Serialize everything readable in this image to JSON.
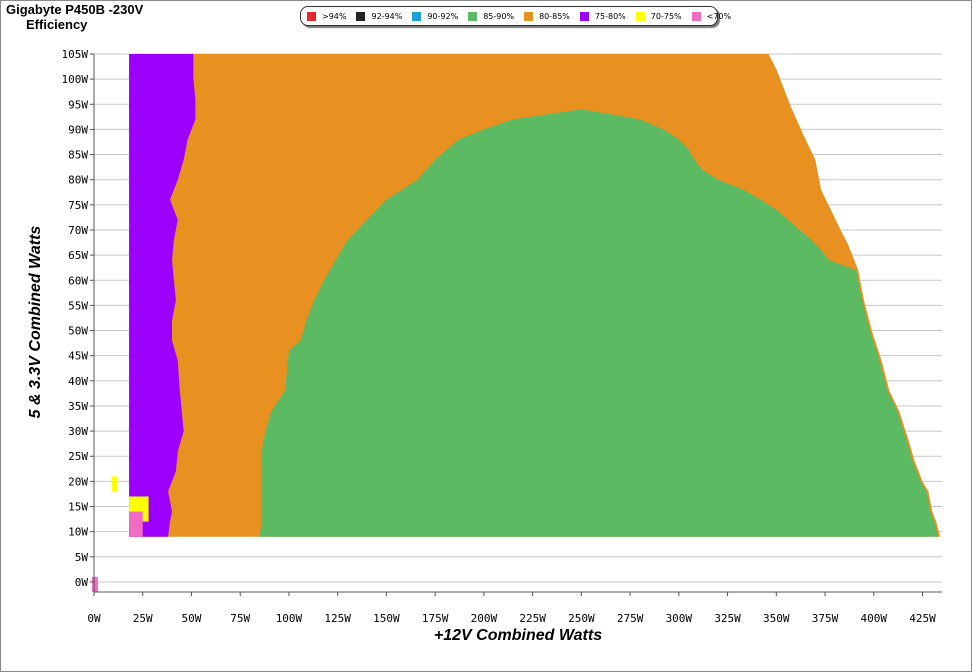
{
  "chart_data": {
    "type": "heatmap",
    "title": "Gigabyte P450B -230V",
    "subtitle": "Efficiency",
    "xlabel": "+12V Combined Watts",
    "ylabel": "5 & 3.3V Combined Watts",
    "xlim": [
      0,
      435
    ],
    "ylim": [
      -2,
      105
    ],
    "x_ticks": [
      0,
      25,
      50,
      75,
      100,
      125,
      150,
      175,
      200,
      225,
      250,
      275,
      300,
      325,
      350,
      375,
      400,
      425
    ],
    "x_tick_labels": [
      "0W",
      "25W",
      "50W",
      "75W",
      "100W",
      "125W",
      "150W",
      "175W",
      "200W",
      "225W",
      "250W",
      "275W",
      "300W",
      "325W",
      "350W",
      "375W",
      "400W",
      "425W"
    ],
    "y_ticks": [
      0,
      5,
      10,
      15,
      20,
      25,
      30,
      35,
      40,
      45,
      50,
      55,
      60,
      65,
      70,
      75,
      80,
      85,
      90,
      95,
      100,
      105
    ],
    "y_tick_labels": [
      "0W",
      "5W",
      "10W",
      "15W",
      "20W",
      "25W",
      "30W",
      "35W",
      "40W",
      "45W",
      "50W",
      "55W",
      "60W",
      "65W",
      "70W",
      "75W",
      "80W",
      "85W",
      "90W",
      "95W",
      "100W",
      "105W"
    ],
    "grid": true,
    "legend_position": "top-center",
    "legend": [
      {
        "label": ">94%",
        "color": "#e8262d"
      },
      {
        "label": "92-94%",
        "color": "#222222"
      },
      {
        "label": "90-92%",
        "color": "#1aa3d9"
      },
      {
        "label": "85-90%",
        "color": "#5bba62"
      },
      {
        "label": "80-85%",
        "color": "#e89020"
      },
      {
        "label": "75-80%",
        "color": "#9b00ff"
      },
      {
        "label": "70-75%",
        "color": "#ffff00"
      },
      {
        "label": "<70%",
        "color": "#f26bc3"
      }
    ],
    "y_range_loaded": [
      9,
      105
    ],
    "outer_boundary": [
      [
        9,
        434
      ],
      [
        12,
        432
      ],
      [
        14,
        430
      ],
      [
        16,
        429
      ],
      [
        18,
        428
      ],
      [
        20,
        425
      ],
      [
        24,
        421
      ],
      [
        28,
        418
      ],
      [
        34,
        413
      ],
      [
        38,
        408
      ],
      [
        44,
        404
      ],
      [
        50,
        399
      ],
      [
        56,
        395
      ],
      [
        62,
        392
      ],
      [
        67,
        387
      ],
      [
        70,
        383
      ],
      [
        74,
        378
      ],
      [
        78,
        373
      ],
      [
        84,
        370
      ],
      [
        88,
        365
      ],
      [
        94,
        358
      ],
      [
        98,
        354
      ],
      [
        102,
        350
      ],
      [
        105,
        346
      ]
    ],
    "purple_right_boundary": [
      [
        9,
        38
      ],
      [
        12,
        39
      ],
      [
        14,
        40
      ],
      [
        18,
        38
      ],
      [
        22,
        42
      ],
      [
        26,
        43
      ],
      [
        30,
        46
      ],
      [
        34,
        45
      ],
      [
        38,
        44
      ],
      [
        44,
        43
      ],
      [
        48,
        40
      ],
      [
        52,
        40
      ],
      [
        56,
        42
      ],
      [
        60,
        41
      ],
      [
        64,
        40
      ],
      [
        68,
        41
      ],
      [
        72,
        43
      ],
      [
        76,
        39
      ],
      [
        80,
        43
      ],
      [
        84,
        46
      ],
      [
        88,
        48
      ],
      [
        92,
        52
      ],
      [
        96,
        52
      ],
      [
        100,
        51
      ],
      [
        105,
        51
      ]
    ],
    "purple_left_x": 18,
    "yellow_cells": [
      [
        18,
        21,
        9,
        12
      ],
      [
        12,
        17,
        18,
        28
      ]
    ],
    "pink_cells": [
      [
        9,
        14,
        18,
        25
      ],
      [
        -2,
        1,
        -1,
        2
      ]
    ],
    "orange_green_boundary": [
      [
        9,
        85
      ],
      [
        12,
        86
      ],
      [
        16,
        86
      ],
      [
        20,
        86
      ],
      [
        26,
        86
      ],
      [
        30,
        88
      ],
      [
        34,
        91
      ],
      [
        38,
        98
      ],
      [
        42,
        99
      ],
      [
        46,
        100
      ],
      [
        48,
        106
      ],
      [
        52,
        109
      ],
      [
        56,
        113
      ],
      [
        60,
        118
      ],
      [
        64,
        124
      ],
      [
        68,
        130
      ],
      [
        72,
        140
      ],
      [
        76,
        150
      ],
      [
        80,
        166
      ],
      [
        84,
        175
      ],
      [
        88,
        187
      ],
      [
        90,
        200
      ],
      [
        92,
        215
      ],
      [
        94,
        250
      ],
      [
        94,
        250
      ]
    ],
    "green_right_boundary_top": [
      [
        94,
        250
      ],
      [
        92,
        280
      ],
      [
        90,
        292
      ],
      [
        88,
        300
      ],
      [
        86,
        305
      ],
      [
        84,
        308
      ],
      [
        82,
        312
      ],
      [
        80,
        320
      ],
      [
        78,
        333
      ],
      [
        76,
        342
      ],
      [
        74,
        350
      ],
      [
        72,
        356
      ],
      [
        70,
        362
      ],
      [
        68,
        368
      ],
      [
        66,
        373
      ],
      [
        64,
        377
      ]
    ]
  }
}
